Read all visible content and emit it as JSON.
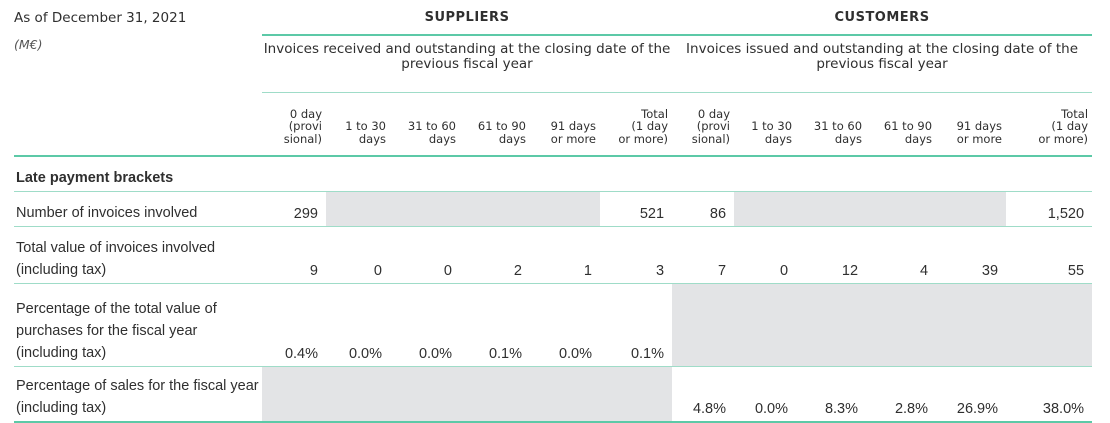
{
  "header": {
    "as_of": "As of December 31, 2021",
    "unit": "(M€)",
    "suppliers": "SUPPLIERS",
    "customers": "CUSTOMERS",
    "suppliers_sub": "Invoices received and outstanding at the closing date of the previous fiscal year",
    "customers_sub": "Invoices issued and outstanding at the closing date of the previous fiscal year"
  },
  "columns": [
    [
      "0 day",
      "(provi",
      "sional)"
    ],
    [
      "1 to 30",
      "days"
    ],
    [
      "31 to 60",
      "days"
    ],
    [
      "61 to 90",
      "days"
    ],
    [
      "91 days",
      "or more"
    ],
    [
      "Total",
      "(1 day",
      "or more)"
    ],
    [
      "0 day",
      "(provi",
      "sional)"
    ],
    [
      "1 to 30",
      "days"
    ],
    [
      "31 to 60",
      "days"
    ],
    [
      "61 to 90",
      "days"
    ],
    [
      "91 days",
      "or more"
    ],
    [
      "Total",
      "(1 day",
      "or more)"
    ]
  ],
  "section_label": "Late payment brackets",
  "rows": [
    {
      "label": "Number of invoices involved",
      "values": [
        "299",
        "",
        "",
        "",
        "",
        "521",
        "86",
        "",
        "",
        "",
        "",
        "1,520"
      ]
    },
    {
      "label": "Total value of invoices involved (including tax)",
      "values": [
        "9",
        "0",
        "0",
        "2",
        "1",
        "3",
        "7",
        "0",
        "12",
        "4",
        "39",
        "55"
      ]
    },
    {
      "label": "Percentage of the total value of purchases for the fiscal year (including tax)",
      "values": [
        "0.4%",
        "0.0%",
        "0.0%",
        "0.1%",
        "0.0%",
        "0.1%",
        "",
        "",
        "",
        "",
        "",
        ""
      ]
    },
    {
      "label": "Percentage of sales for the fiscal year (including tax)",
      "values": [
        "",
        "",
        "",
        "",
        "",
        "",
        "4.8%",
        "0.0%",
        "8.3%",
        "2.8%",
        "26.9%",
        "38.0%"
      ]
    }
  ],
  "colors": {
    "accent": "#5cc9a7",
    "shade": "#e3e4e6"
  }
}
